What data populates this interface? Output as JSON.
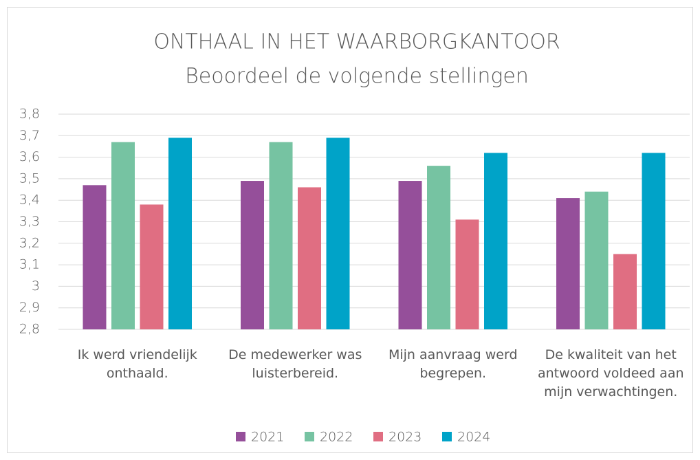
{
  "chart_data": {
    "type": "bar",
    "title": "ONTHAAL IN HET WAARBORGKANTOOR",
    "subtitle": "Beoordeel de volgende stellingen",
    "categories": [
      "Ik werd vriendelijk onthaald.",
      "De medewerker was luisterbereid.",
      "Mijn aanvraag werd begrepen.",
      "De kwaliteit van het antwoord voldeed aan mijn verwachtingen."
    ],
    "series": [
      {
        "name": "2021",
        "color": "#954f9a",
        "values": [
          3.47,
          3.49,
          3.49,
          3.41
        ]
      },
      {
        "name": "2022",
        "color": "#76c3a2",
        "values": [
          3.67,
          3.67,
          3.56,
          3.44
        ]
      },
      {
        "name": "2023",
        "color": "#e06e82",
        "values": [
          3.38,
          3.46,
          3.31,
          3.15
        ]
      },
      {
        "name": "2024",
        "color": "#00a3c8",
        "values": [
          3.69,
          3.69,
          3.62,
          3.62
        ]
      }
    ],
    "ylim": [
      2.8,
      3.8
    ],
    "yticks": [
      {
        "value": 2.8,
        "label": "2,8"
      },
      {
        "value": 2.9,
        "label": "2,9"
      },
      3,
      {
        "value": 3.1,
        "label": "3,1"
      },
      {
        "value": 3.2,
        "label": "3,2"
      },
      {
        "value": 3.3,
        "label": "3,3"
      },
      {
        "value": 3.4,
        "label": "3,4"
      },
      {
        "value": 3.5,
        "label": "3,5"
      },
      {
        "value": 3.6,
        "label": "3,6"
      },
      {
        "value": 3.7,
        "label": "3,7"
      },
      {
        "value": 3.8,
        "label": "3,8"
      }
    ],
    "grid": true,
    "legend": "bottom"
  }
}
